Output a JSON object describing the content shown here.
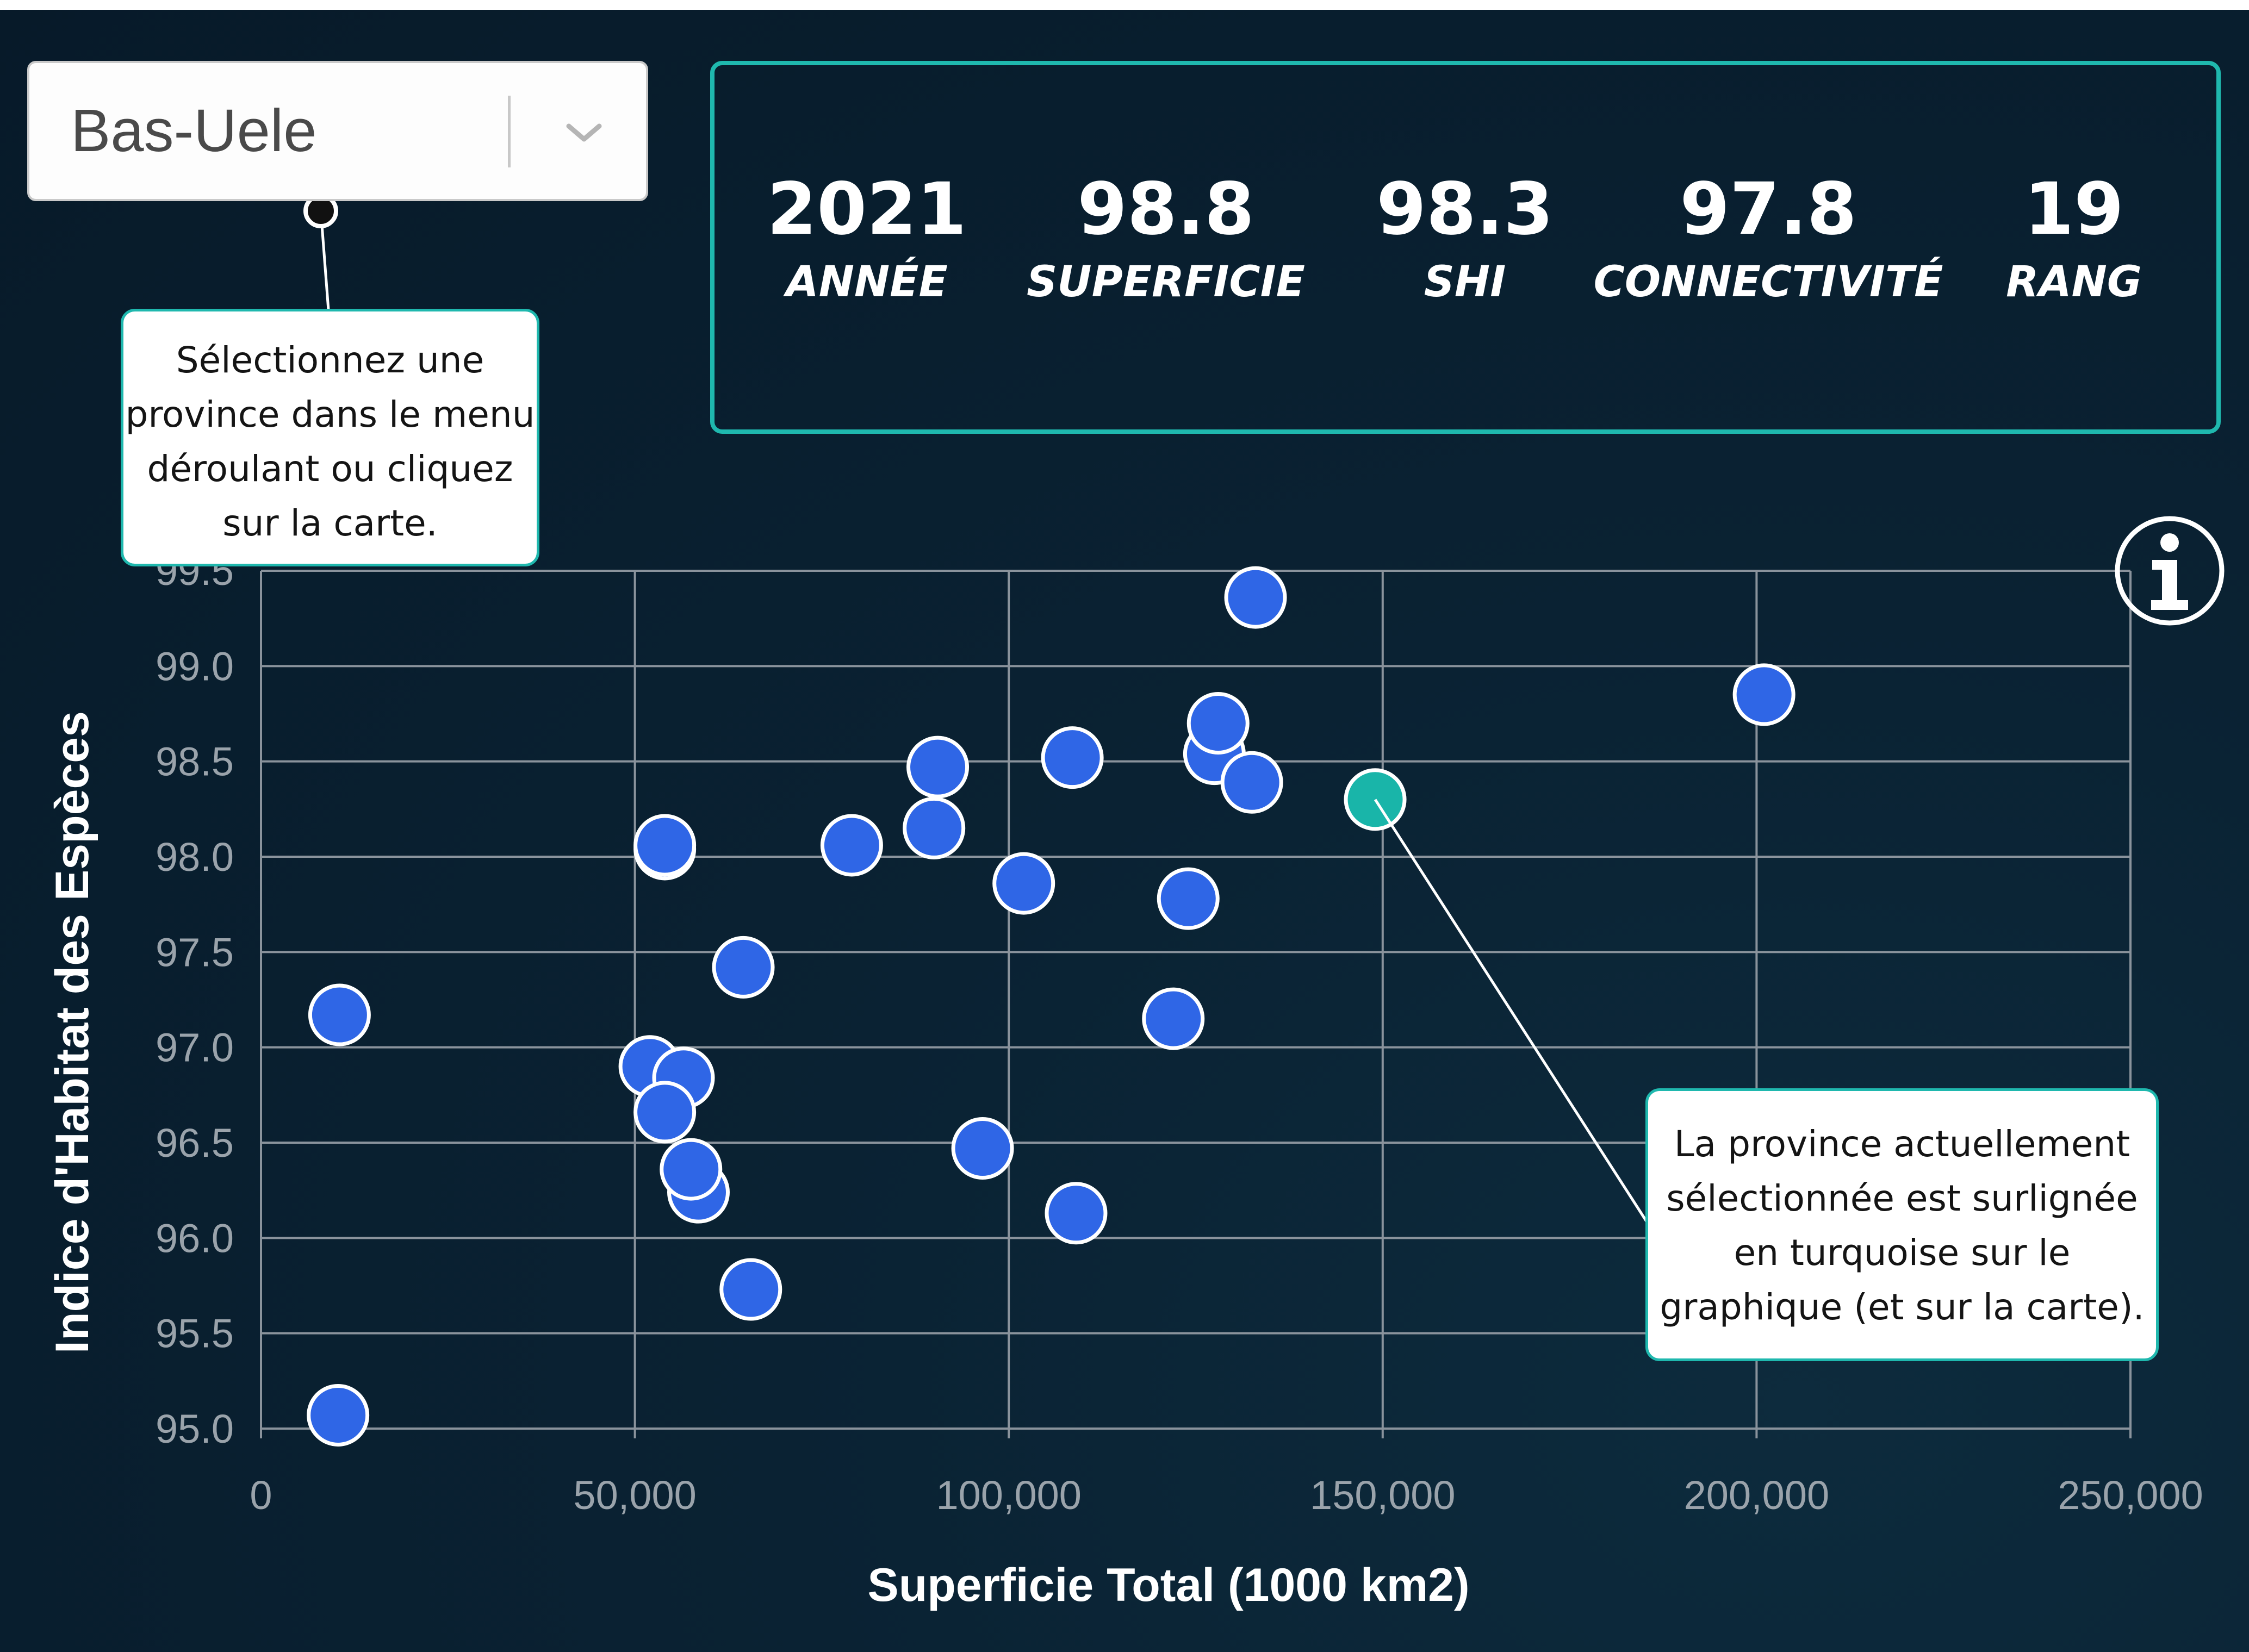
{
  "province_select": {
    "value": "Bas-Uele"
  },
  "stats": [
    {
      "value": "2021",
      "label": "ANNÉE"
    },
    {
      "value": "98.8",
      "label": "SUPERFICIE"
    },
    {
      "value": "98.3",
      "label": "SHI"
    },
    {
      "value": "97.8",
      "label": "CONNECTIVITÉ"
    },
    {
      "value": "19",
      "label": "RANG"
    }
  ],
  "tooltip_select": "Sélectionnez une province dans le menu déroulant ou cliquez sur la carte.",
  "tooltip_highlight": "La province actuellement sélectionnée est surlignée en turquoise sur le graphique (et sur la carte).",
  "colors": {
    "accent": "#1fb8ae",
    "point": "#2f66e6",
    "selected_point": "#19b5a9"
  },
  "icons": {
    "info": "info-icon",
    "dropdown": "chevron-down-icon"
  },
  "chart_data": {
    "type": "scatter",
    "xlabel": "Superficie Total (1000 km2)",
    "ylabel": "Indice d'Habitat des Espèces",
    "xlim": [
      0,
      250000
    ],
    "ylim": [
      95.0,
      99.5
    ],
    "x_ticks": [
      0,
      50000,
      100000,
      150000,
      200000,
      250000
    ],
    "x_tick_labels": [
      "0",
      "50,000",
      "100,000",
      "150,000",
      "200,000",
      "250,000"
    ],
    "y_ticks": [
      95.0,
      95.5,
      96.0,
      96.5,
      97.0,
      97.5,
      98.0,
      98.5,
      99.0,
      99.5
    ],
    "y_tick_labels": [
      "95.0",
      "95.5",
      "96.0",
      "96.5",
      "97.0",
      "97.5",
      "98.0",
      "98.5",
      "99.0",
      "99.5"
    ],
    "grid": true,
    "selected": {
      "x": 149000,
      "y": 98.3,
      "name": "Bas-Uele"
    },
    "points": [
      {
        "x": 10500,
        "y": 97.17
      },
      {
        "x": 10300,
        "y": 95.07
      },
      {
        "x": 54000,
        "y": 98.04
      },
      {
        "x": 54000,
        "y": 98.06
      },
      {
        "x": 52000,
        "y": 96.9
      },
      {
        "x": 56500,
        "y": 96.84
      },
      {
        "x": 54000,
        "y": 96.66
      },
      {
        "x": 58500,
        "y": 96.24
      },
      {
        "x": 57500,
        "y": 96.36
      },
      {
        "x": 64500,
        "y": 97.42
      },
      {
        "x": 65500,
        "y": 95.73
      },
      {
        "x": 79000,
        "y": 98.06
      },
      {
        "x": 90500,
        "y": 98.47
      },
      {
        "x": 90000,
        "y": 98.15
      },
      {
        "x": 96500,
        "y": 96.47
      },
      {
        "x": 102000,
        "y": 97.86
      },
      {
        "x": 108500,
        "y": 98.52
      },
      {
        "x": 109000,
        "y": 96.13
      },
      {
        "x": 122000,
        "y": 97.15
      },
      {
        "x": 124000,
        "y": 97.78
      },
      {
        "x": 127500,
        "y": 98.54
      },
      {
        "x": 128000,
        "y": 98.7
      },
      {
        "x": 132500,
        "y": 98.39
      },
      {
        "x": 133000,
        "y": 99.36
      },
      {
        "x": 201000,
        "y": 98.85
      }
    ]
  }
}
